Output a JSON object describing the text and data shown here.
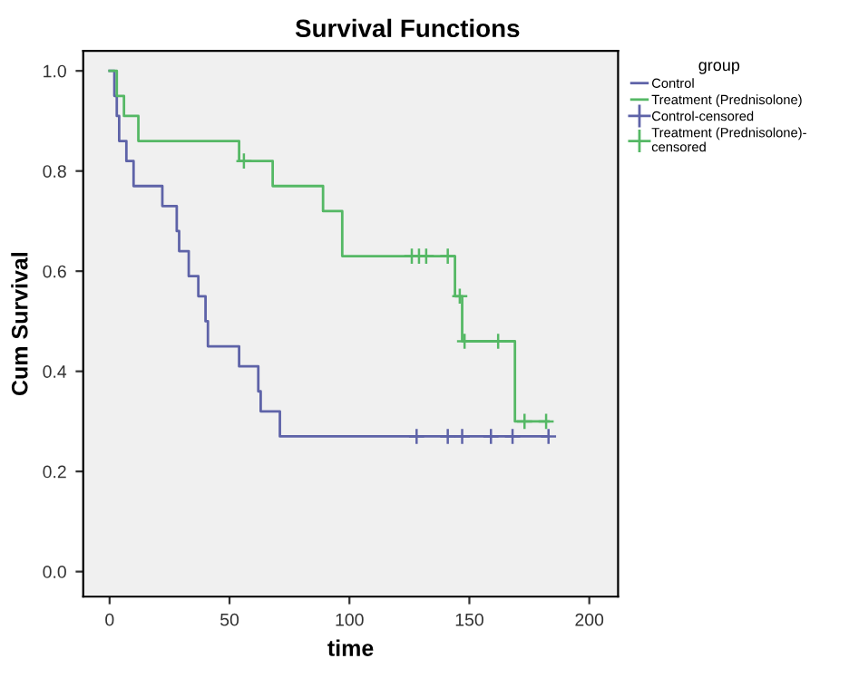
{
  "chart_data": {
    "type": "step",
    "title": "Survival Functions",
    "xlabel": "time",
    "ylabel": "Cum Survival",
    "legend_title": "group",
    "legend": "right",
    "grid": false,
    "xlim": [
      -11,
      212
    ],
    "xticks": [
      0,
      50,
      100,
      150,
      200
    ],
    "ylim": [
      -0.05,
      1.04
    ],
    "yticks": [
      {
        "value": 0,
        "label": "0.0"
      },
      0.2,
      0.4,
      0.6,
      0.8,
      {
        "value": 1,
        "label": "1.0"
      }
    ],
    "series": [
      {
        "name": "Control",
        "color": "#5e63a8",
        "x": [
          0,
          2,
          3,
          4,
          7,
          10,
          22,
          28,
          29,
          33,
          37,
          40,
          41,
          54,
          62,
          63,
          71,
          183
        ],
        "values": [
          1,
          0.95,
          0.91,
          0.86,
          0.82,
          0.77,
          0.73,
          0.68,
          0.64,
          0.59,
          0.55,
          0.5,
          0.45,
          0.41,
          0.36,
          0.32,
          0.27,
          0.27
        ]
      },
      {
        "name": "Treatment (Prednisolone)",
        "color": "#55b865",
        "x": [
          0,
          3,
          6,
          12,
          54,
          68,
          89,
          97,
          144,
          147,
          169,
          183
        ],
        "values": [
          1,
          0.95,
          0.91,
          0.86,
          0.82,
          0.77,
          0.72,
          0.63,
          0.55,
          0.46,
          0.3,
          0.3
        ]
      },
      {
        "name": "Control-censored",
        "type": "scatter",
        "marker": "cross",
        "color": "#5e63a8",
        "x": [
          128,
          141,
          147,
          159,
          168,
          183
        ],
        "values": [
          0.27,
          0.27,
          0.27,
          0.27,
          0.27,
          0.27
        ]
      },
      {
        "name": "Treatment (Prednisolone)-censored",
        "type": "scatter",
        "marker": "cross",
        "color": "#55b865",
        "x": [
          56,
          126,
          129,
          132,
          141,
          146,
          148,
          162,
          173,
          182
        ],
        "values": [
          0.82,
          0.63,
          0.63,
          0.63,
          0.63,
          0.55,
          0.46,
          0.46,
          0.3,
          0.3
        ]
      }
    ]
  }
}
